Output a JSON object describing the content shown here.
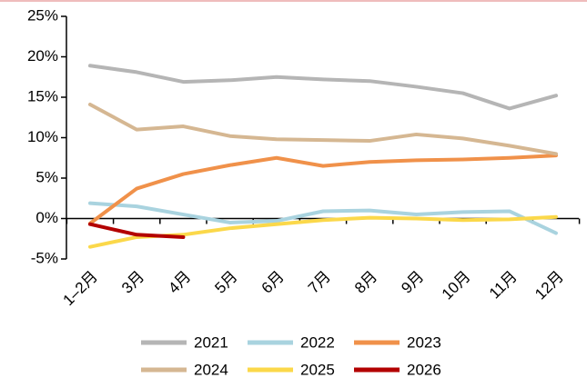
{
  "chart_data": {
    "type": "line",
    "categories": [
      "1–2月",
      "3月",
      "4月",
      "5月",
      "6月",
      "7月",
      "8月",
      "9月",
      "10月",
      "11月",
      "12月"
    ],
    "series": [
      {
        "name": "2021",
        "color": "#b5b5b5",
        "values": [
          18.9,
          18.1,
          16.9,
          17.1,
          17.5,
          17.2,
          17.0,
          16.3,
          15.5,
          13.6,
          15.2
        ]
      },
      {
        "name": "2022",
        "color": "#a9d3df",
        "values": [
          1.9,
          1.5,
          0.5,
          -0.5,
          -0.3,
          0.9,
          1.0,
          0.5,
          0.8,
          0.9,
          -1.8
        ]
      },
      {
        "name": "2023",
        "color": "#f0914a",
        "values": [
          -0.6,
          3.7,
          5.5,
          6.6,
          7.5,
          6.5,
          7.0,
          7.2,
          7.3,
          7.5,
          7.8
        ]
      },
      {
        "name": "2024",
        "color": "#d5b792",
        "values": [
          14.1,
          11.0,
          11.4,
          10.2,
          9.8,
          9.7,
          9.6,
          10.4,
          9.9,
          9.0,
          8.0
        ]
      },
      {
        "name": "2025",
        "color": "#fbd84a",
        "values": [
          -3.5,
          -2.3,
          -2.0,
          -1.2,
          -0.7,
          -0.2,
          0.1,
          0.0,
          -0.2,
          -0.1,
          0.2
        ]
      },
      {
        "name": "2026",
        "color": "#b30000",
        "values": [
          -0.7,
          -2.0,
          -2.3,
          null,
          null,
          null,
          null,
          null,
          null,
          null,
          null
        ]
      }
    ],
    "ylim": [
      -5,
      25
    ],
    "yticks": [
      {
        "value": -5,
        "label": "-5%"
      },
      {
        "value": 0,
        "label": "0%"
      },
      {
        "value": 5,
        "label": "5%"
      },
      {
        "value": 10,
        "label": "10%"
      },
      {
        "value": 15,
        "label": "15%"
      },
      {
        "value": 20,
        "label": "20%"
      },
      {
        "value": 25,
        "label": "25%"
      }
    ],
    "grid": false
  }
}
